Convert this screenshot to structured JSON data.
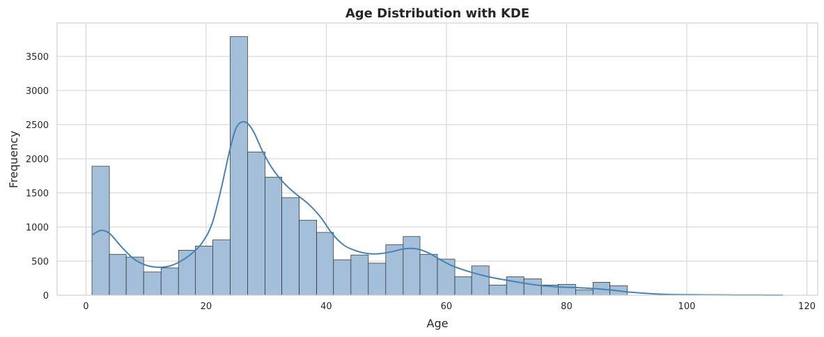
{
  "chart_data": {
    "type": "bar",
    "subtype": "histogram with KDE",
    "title": "Age Distribution with KDE",
    "xlabel": "Age",
    "ylabel": "Frequency",
    "xlim": [
      -4.8,
      121.8
    ],
    "ylim": [
      0,
      3990
    ],
    "xticks": [
      0,
      20,
      40,
      60,
      80,
      100,
      120
    ],
    "yticks": [
      0,
      500,
      1000,
      1500,
      2000,
      2500,
      3000,
      3500
    ],
    "grid": true,
    "legend": "none",
    "bins": [
      {
        "x0": 1.0,
        "x1": 3.9,
        "count": 1890
      },
      {
        "x0": 3.9,
        "x1": 6.7,
        "count": 600
      },
      {
        "x0": 6.7,
        "x1": 9.6,
        "count": 560
      },
      {
        "x0": 9.6,
        "x1": 12.5,
        "count": 340
      },
      {
        "x0": 12.5,
        "x1": 15.4,
        "count": 400
      },
      {
        "x0": 15.4,
        "x1": 18.2,
        "count": 660
      },
      {
        "x0": 18.2,
        "x1": 21.1,
        "count": 720
      },
      {
        "x0": 21.1,
        "x1": 24.0,
        "count": 810
      },
      {
        "x0": 24.0,
        "x1": 26.9,
        "count": 3790
      },
      {
        "x0": 26.9,
        "x1": 29.8,
        "count": 2100
      },
      {
        "x0": 29.8,
        "x1": 32.6,
        "count": 1730
      },
      {
        "x0": 32.6,
        "x1": 35.5,
        "count": 1430
      },
      {
        "x0": 35.5,
        "x1": 38.4,
        "count": 1100
      },
      {
        "x0": 38.4,
        "x1": 41.2,
        "count": 920
      },
      {
        "x0": 41.2,
        "x1": 44.1,
        "count": 520
      },
      {
        "x0": 44.1,
        "x1": 47.0,
        "count": 590
      },
      {
        "x0": 47.0,
        "x1": 49.9,
        "count": 470
      },
      {
        "x0": 49.9,
        "x1": 52.8,
        "count": 740
      },
      {
        "x0": 52.8,
        "x1": 55.6,
        "count": 860
      },
      {
        "x0": 55.6,
        "x1": 58.5,
        "count": 600
      },
      {
        "x0": 58.5,
        "x1": 61.4,
        "count": 530
      },
      {
        "x0": 61.4,
        "x1": 64.2,
        "count": 270
      },
      {
        "x0": 64.2,
        "x1": 67.1,
        "count": 430
      },
      {
        "x0": 67.1,
        "x1": 70.0,
        "count": 150
      },
      {
        "x0": 70.0,
        "x1": 72.9,
        "count": 270
      },
      {
        "x0": 72.9,
        "x1": 75.8,
        "count": 240
      },
      {
        "x0": 75.8,
        "x1": 78.6,
        "count": 150
      },
      {
        "x0": 78.6,
        "x1": 81.5,
        "count": 160
      },
      {
        "x0": 81.5,
        "x1": 84.4,
        "count": 80
      },
      {
        "x0": 84.4,
        "x1": 87.2,
        "count": 190
      },
      {
        "x0": 87.2,
        "x1": 90.1,
        "count": 140
      }
    ],
    "kde": {
      "x": [
        1,
        2.5,
        4,
        6,
        8,
        10,
        12,
        14,
        16,
        18,
        19.5,
        21,
        22.5,
        24,
        25,
        26,
        27,
        28,
        29.5,
        31,
        33,
        35,
        37,
        39,
        41,
        43,
        45,
        47,
        49,
        51,
        53,
        55,
        57,
        59,
        61,
        64,
        67,
        70,
        73,
        76,
        79,
        82,
        85,
        88,
        90,
        92,
        95,
        98,
        101,
        104,
        108,
        112,
        116
      ],
      "y": [
        880,
        950,
        900,
        700,
        530,
        440,
        410,
        430,
        510,
        640,
        790,
        1050,
        1560,
        2150,
        2450,
        2540,
        2510,
        2380,
        2090,
        1860,
        1640,
        1480,
        1340,
        1150,
        900,
        730,
        650,
        610,
        610,
        640,
        680,
        680,
        620,
        520,
        430,
        340,
        270,
        220,
        175,
        140,
        120,
        110,
        95,
        70,
        50,
        35,
        18,
        10,
        7,
        5,
        3,
        2,
        1
      ]
    },
    "colors": {
      "bar_fill": "#a3bfd9",
      "bar_edge": "#262626",
      "kde_line": "#4682b4",
      "grid": "#d0d0d0",
      "axes_frame": "#d0d0d0"
    }
  }
}
